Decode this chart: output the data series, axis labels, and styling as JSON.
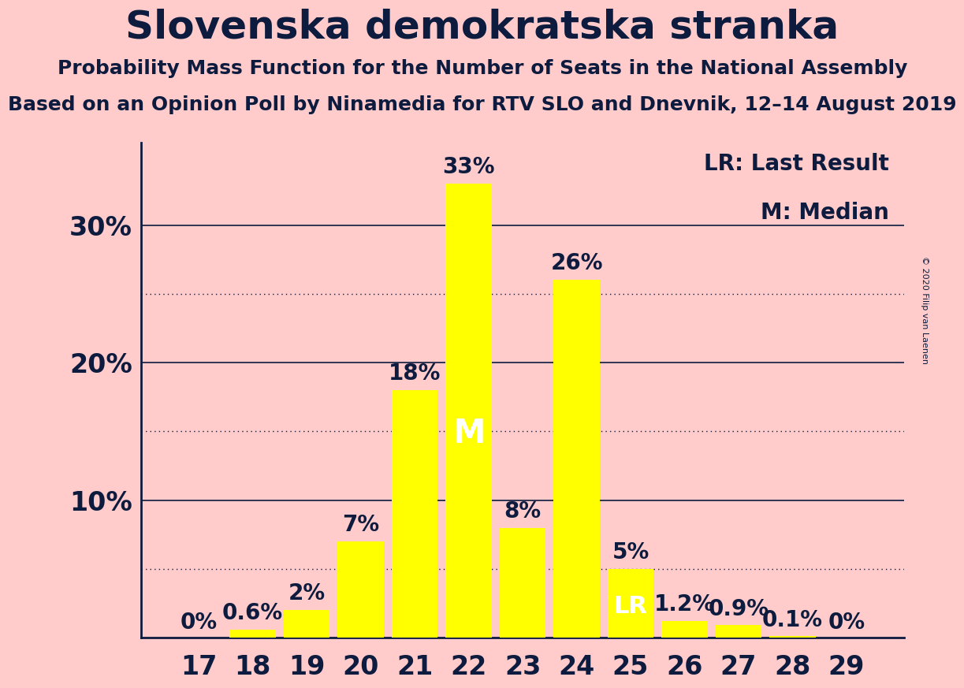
{
  "title": "Slovenska demokratska stranka",
  "subtitle1": "Probability Mass Function for the Number of Seats in the National Assembly",
  "subtitle2": "Based on an Opinion Poll by Ninamedia for RTV SLO and Dnevnik, 12–14 August 2019",
  "copyright": "© 2020 Filip van Laenen",
  "seats": [
    17,
    18,
    19,
    20,
    21,
    22,
    23,
    24,
    25,
    26,
    27,
    28,
    29
  ],
  "probabilities": [
    0.0,
    0.6,
    2.0,
    7.0,
    18.0,
    33.0,
    8.0,
    26.0,
    5.0,
    1.2,
    0.9,
    0.1,
    0.0
  ],
  "bar_color": "#FFFF00",
  "background_color": "#FFCCCB",
  "text_color": "#0d1b3e",
  "median_seat": 22,
  "lr_seat": 25,
  "solid_lines": [
    10.0,
    20.0,
    30.0
  ],
  "dotted_lines": [
    5.0,
    15.0,
    25.0
  ],
  "legend_lr": "LR: Last Result",
  "legend_m": "M: Median",
  "title_fontsize": 36,
  "subtitle_fontsize": 18,
  "tick_fontsize": 24,
  "bar_annotation_fontsize": 20,
  "bar_labels": [
    "0%",
    "0.6%",
    "2%",
    "7%",
    "18%",
    "33%",
    "8%",
    "26%",
    "5%",
    "1.2%",
    "0.9%",
    "0.1%",
    "0%"
  ],
  "ytick_vals": [
    10,
    20,
    30
  ],
  "ytick_labels": [
    "10%",
    "20%",
    "30%"
  ]
}
